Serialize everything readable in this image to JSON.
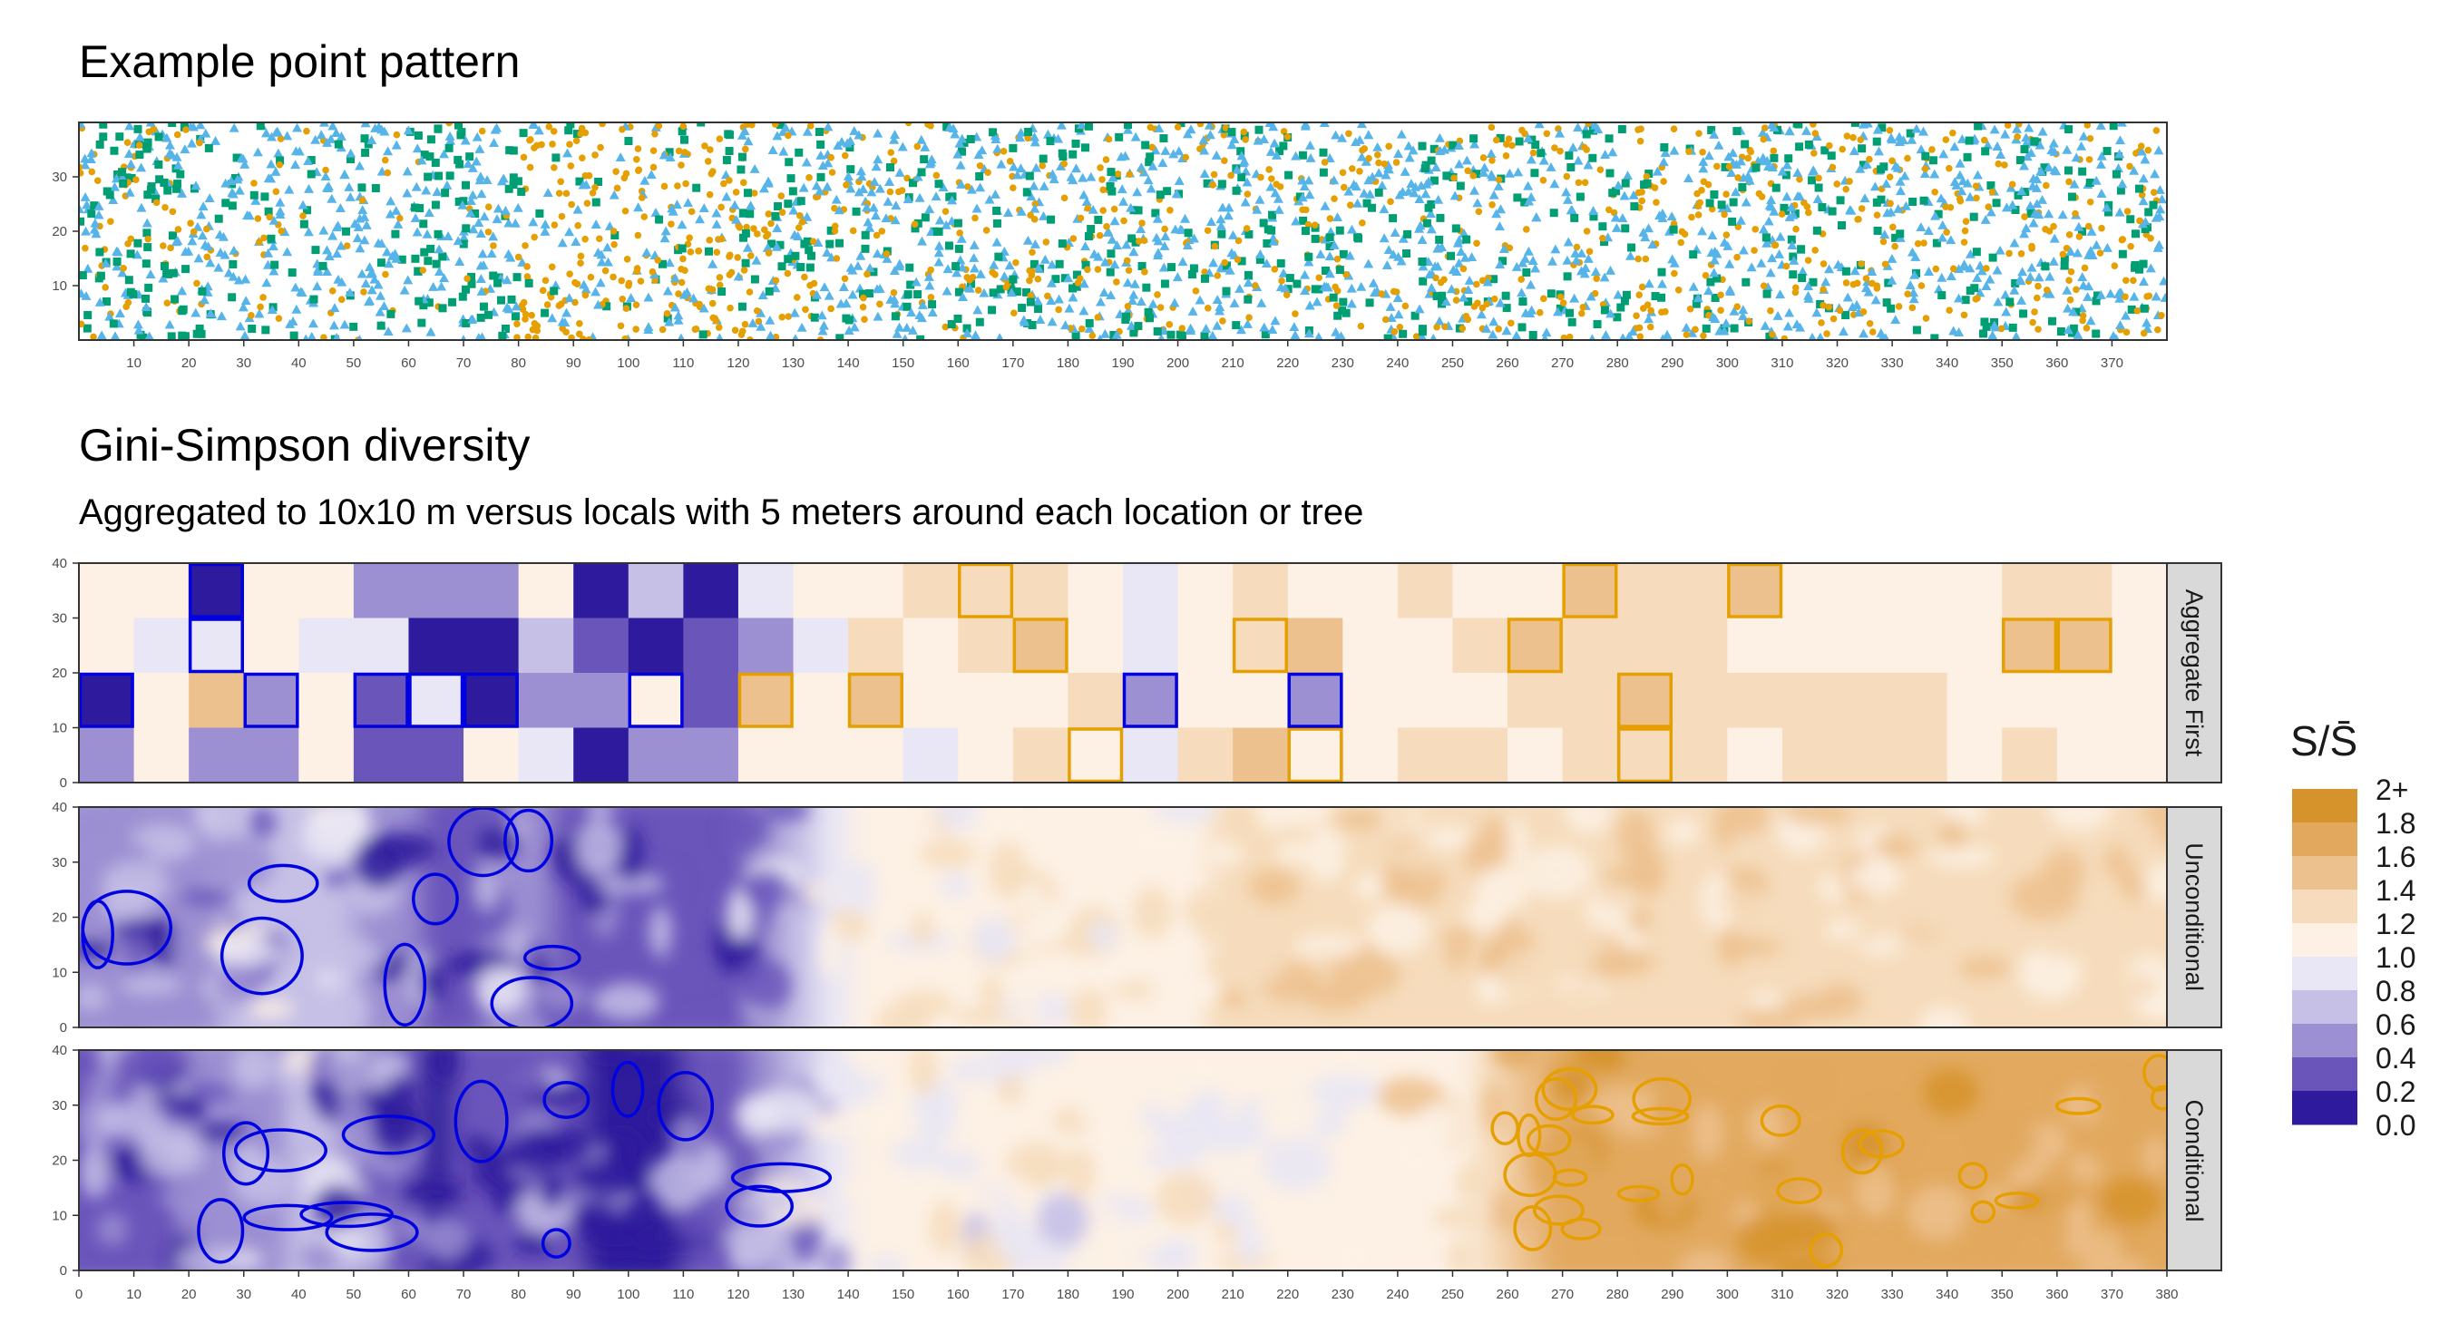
{
  "chart_data": [
    {
      "type": "scatter",
      "title": "Example point pattern",
      "xlim": [
        0,
        380
      ],
      "ylim": [
        0,
        40
      ],
      "x_ticks": [
        10,
        20,
        30,
        40,
        50,
        60,
        70,
        80,
        90,
        100,
        110,
        120,
        130,
        140,
        150,
        160,
        170,
        180,
        190,
        200,
        210,
        220,
        230,
        240,
        250,
        260,
        270,
        280,
        290,
        300,
        310,
        320,
        330,
        340,
        350,
        360,
        370
      ],
      "y_ticks": [
        10,
        20,
        30
      ],
      "grid": false,
      "series": [
        {
          "marker": "triangle",
          "color": "#56b4e9"
        },
        {
          "marker": "circle",
          "color": "#e69f00"
        },
        {
          "marker": "square",
          "color": "#009e73"
        }
      ],
      "density_profile": {
        "x_bins": [
          0,
          20,
          40,
          60,
          80,
          100,
          120,
          140,
          160,
          180,
          200,
          220,
          240,
          260,
          280,
          300,
          320,
          340,
          360,
          380
        ],
        "share_triangle": [
          0.3,
          0.62,
          0.68,
          0.48,
          0.3,
          0.25,
          0.4,
          0.5,
          0.45,
          0.45,
          0.5,
          0.48,
          0.47,
          0.46,
          0.46,
          0.46,
          0.47,
          0.47,
          0.48
        ],
        "share_circle": [
          0.35,
          0.22,
          0.15,
          0.12,
          0.62,
          0.62,
          0.42,
          0.28,
          0.3,
          0.3,
          0.26,
          0.28,
          0.3,
          0.31,
          0.32,
          0.32,
          0.31,
          0.31,
          0.3
        ]
      }
    },
    {
      "type": "heatmap",
      "title": "Gini-Simpson diversity",
      "subtitle": "Aggregated to 10x10 m versus locals with 5 meters around each location or tree",
      "xlim": [
        0,
        380
      ],
      "ylim": [
        0,
        40
      ],
      "x_ticks": [
        0,
        10,
        20,
        30,
        40,
        50,
        60,
        70,
        80,
        90,
        100,
        110,
        120,
        130,
        140,
        150,
        160,
        170,
        180,
        190,
        200,
        210,
        220,
        230,
        240,
        250,
        260,
        270,
        280,
        290,
        300,
        310,
        320,
        330,
        340,
        350,
        360,
        370,
        380
      ],
      "y_ticks": [
        0,
        10,
        20,
        30,
        40
      ],
      "facets": [
        "Aggregate First",
        "Unconditional",
        "Conditional"
      ],
      "legend": {
        "title": "S/S̄",
        "position": "right",
        "labels": [
          "2+",
          "1.8",
          "1.6",
          "1.4",
          "1.2",
          "1.0",
          "0.8",
          "0.6",
          "0.4",
          "0.2",
          "0.0"
        ],
        "colors": [
          "#d6932c",
          "#e2a95e",
          "#edc18e",
          "#f6dcbc",
          "#fdf1e5",
          "#e9e6f5",
          "#c6c0e6",
          "#9c8fd2",
          "#6a55bb",
          "#2e1a9c"
        ]
      },
      "aggregate_first": {
        "x_edges_step": 10,
        "y_rows": [
          "30-40",
          "20-30",
          "10-20",
          "0-10"
        ],
        "values": [
          [
            1.1,
            1.1,
            0.1,
            1.1,
            1.1,
            0.6,
            0.5,
            0.5,
            1.1,
            0.1,
            0.7,
            0.1,
            0.8,
            1.1,
            1.1,
            1.3,
            1.4,
            1.3,
            1.1,
            0.9,
            1.1,
            1.3,
            1.1,
            1.1,
            1.3,
            1.1,
            1.1,
            1.5,
            1.3,
            1.3,
            1.5,
            1.1,
            1.1,
            1.1,
            1.1,
            1.3,
            1.3,
            1.1
          ],
          [
            1.1,
            0.9,
            0.8,
            1.1,
            0.9,
            0.9,
            0.1,
            0.1,
            0.7,
            0.3,
            0.1,
            0.3,
            0.5,
            0.8,
            1.3,
            1.1,
            1.3,
            1.5,
            1.1,
            0.9,
            1.1,
            1.3,
            1.5,
            1.1,
            1.1,
            1.3,
            1.5,
            1.3,
            1.3,
            1.3,
            1.1,
            1.1,
            1.1,
            1.1,
            1.1,
            1.5,
            1.5,
            1.1
          ],
          [
            0.1,
            1.1,
            1.5,
            0.5,
            1.1,
            0.3,
            0.9,
            0.1,
            0.6,
            0.6,
            1.0,
            0.3,
            1.5,
            1.1,
            1.5,
            1.1,
            1.1,
            1.1,
            1.3,
            0.6,
            1.1,
            1.1,
            0.6,
            1.1,
            1.1,
            1.1,
            1.3,
            1.3,
            1.5,
            1.3,
            1.3,
            1.3,
            1.3,
            1.3,
            1.1,
            1.1,
            1.1,
            1.1
          ],
          [
            0.5,
            1.1,
            0.5,
            0.5,
            1.1,
            0.3,
            0.3,
            1.1,
            0.8,
            0.1,
            0.5,
            0.5,
            1.1,
            1.1,
            1.1,
            0.9,
            1.1,
            1.3,
            1.1,
            0.9,
            1.3,
            1.5,
            1.1,
            1.1,
            1.3,
            1.3,
            1.1,
            1.3,
            1.3,
            1.3,
            1.1,
            1.3,
            1.3,
            1.3,
            1.1,
            1.3,
            1.1,
            1.1
          ]
        ],
        "outlined_high": [
          [
            4,
            16
          ],
          [
            4,
            27
          ],
          [
            4,
            30
          ],
          [
            3,
            17
          ],
          [
            3,
            21
          ],
          [
            3,
            26
          ],
          [
            3,
            35
          ],
          [
            3,
            36
          ],
          [
            2,
            12
          ],
          [
            2,
            14
          ],
          [
            2,
            28
          ],
          [
            1,
            18
          ],
          [
            1,
            22
          ],
          [
            1,
            28
          ]
        ],
        "outlined_low": [
          [
            4,
            2
          ],
          [
            3,
            2
          ],
          [
            2,
            0
          ],
          [
            2,
            3
          ],
          [
            2,
            5
          ],
          [
            2,
            6
          ],
          [
            2,
            7
          ],
          [
            2,
            10
          ],
          [
            2,
            19
          ],
          [
            2,
            22
          ]
        ]
      },
      "unconditional": {
        "low_region_x": [
          0,
          130
        ],
        "high_region_x": null,
        "profile_x": [
          0,
          20,
          40,
          60,
          80,
          100,
          120,
          140,
          200,
          260,
          320,
          380
        ],
        "profile_value": [
          0.45,
          0.55,
          0.75,
          0.35,
          0.45,
          0.25,
          0.4,
          1.15,
          1.2,
          1.25,
          1.25,
          1.25
        ]
      },
      "conditional": {
        "low_region_x": [
          0,
          130
        ],
        "high_region_x": [
          258,
          380
        ],
        "profile_x": [
          0,
          20,
          40,
          60,
          80,
          100,
          120,
          140,
          200,
          250,
          270,
          320,
          380
        ],
        "profile_value": [
          0.35,
          0.4,
          0.7,
          0.15,
          0.3,
          0.1,
          0.35,
          1.05,
          1.0,
          1.2,
          1.7,
          1.75,
          1.7
        ]
      }
    }
  ]
}
